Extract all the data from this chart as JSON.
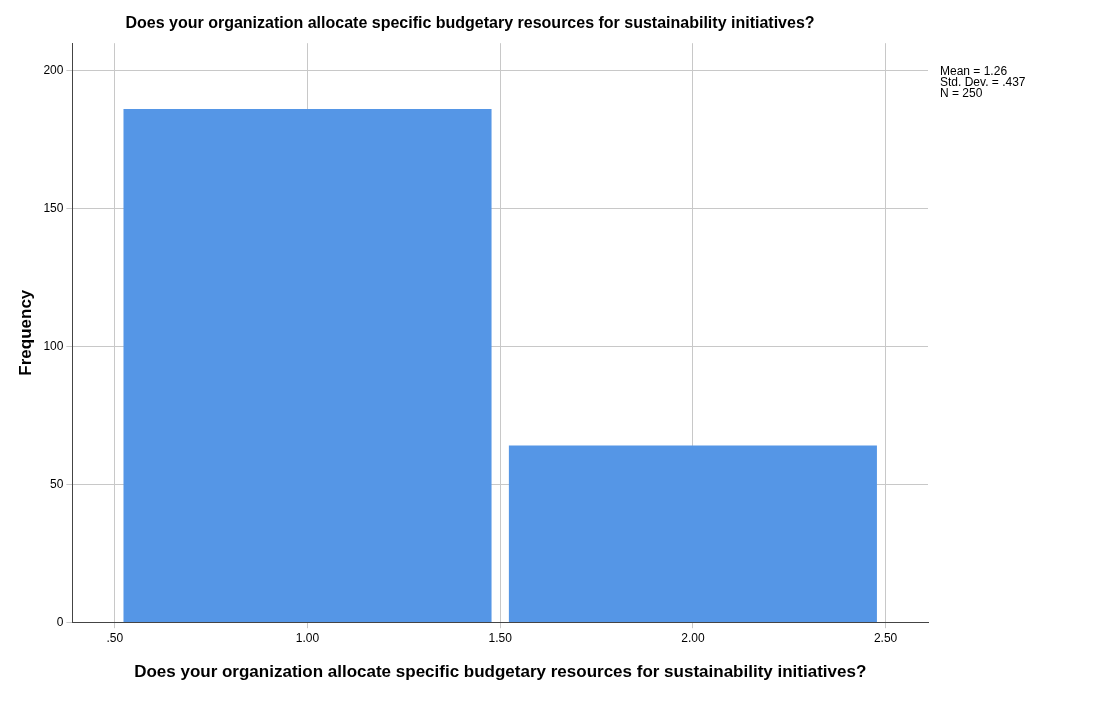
{
  "chart_data": {
    "type": "histogram",
    "title": "Does your organization allocate specific budgetary resources for sustainability initiatives?",
    "xlabel": "Does your organization allocate specific budgetary resources for sustainability initiatives?",
    "ylabel": "Frequency",
    "bins": [
      0.5,
      1.5,
      2.5
    ],
    "values": [
      186,
      64
    ],
    "color": "#5596e6",
    "xlim": [
      0.39,
      2.61
    ],
    "xticks": [
      {
        "value": 0.5,
        "label": ".50"
      },
      {
        "value": 1,
        "label": "1.00"
      },
      {
        "value": 1.5,
        "label": "1.50"
      },
      {
        "value": 2,
        "label": "2.00"
      },
      {
        "value": 2.5,
        "label": "2.50"
      }
    ],
    "ylim": [
      0,
      210
    ],
    "yticks": [
      0,
      50,
      100,
      150,
      200
    ],
    "grid": true,
    "legend": false,
    "annotations": [
      "Mean = 1.26",
      "Std. Dev. = .437",
      "N = 250"
    ]
  }
}
